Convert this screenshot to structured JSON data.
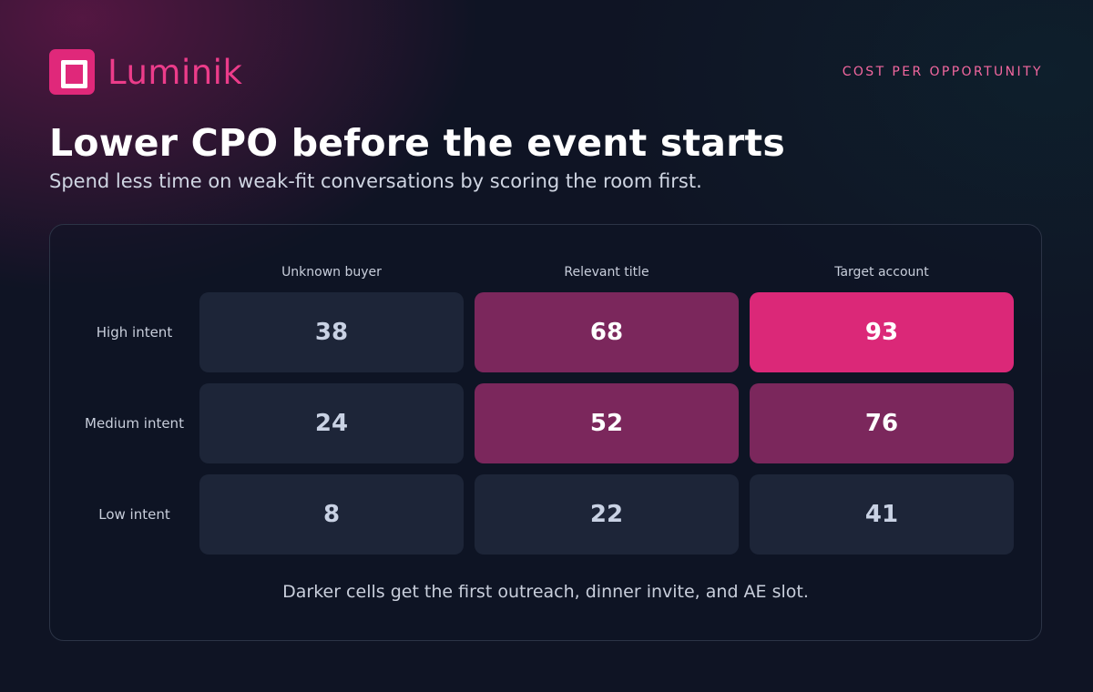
{
  "brand": {
    "name": "Luminik",
    "accent_color": "#e0287a"
  },
  "eyebrow": "COST PER OPPORTUNITY",
  "title": "Lower CPO before the event starts",
  "subtitle": "Spend less time on weak-fit conversations by scoring the room first.",
  "chart_data": {
    "type": "heatmap",
    "columns": [
      "Unknown buyer",
      "Relevant title",
      "Target account"
    ],
    "rows": [
      "High intent",
      "Medium intent",
      "Low intent"
    ],
    "values": [
      [
        38,
        68,
        93
      ],
      [
        24,
        52,
        76
      ],
      [
        8,
        22,
        41
      ]
    ],
    "color_scale": {
      "low": "#1d2538",
      "mid": "#7b275c",
      "high": "#db2878",
      "low_text": "#c9d2e4",
      "high_text": "#ffffff"
    },
    "caption": "Darker cells get the first outreach, dinner invite, and AE slot."
  }
}
